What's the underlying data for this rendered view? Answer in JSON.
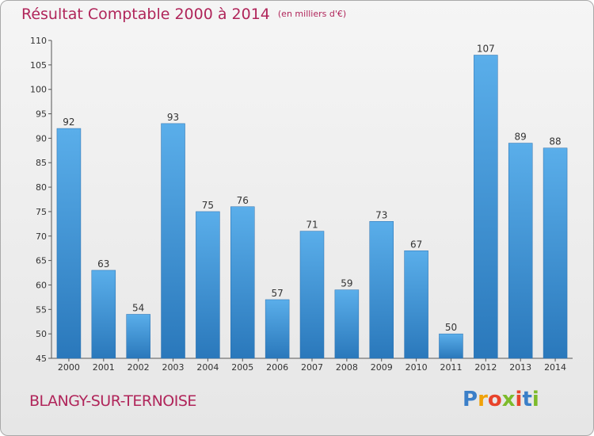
{
  "chart_data": {
    "type": "bar",
    "title": "Résultat Comptable 2000 à 2014",
    "subtitle": "(en milliers d'€)",
    "categories": [
      "2000",
      "2001",
      "2002",
      "2003",
      "2004",
      "2005",
      "2006",
      "2007",
      "2008",
      "2009",
      "2010",
      "2011",
      "2012",
      "2013",
      "2014"
    ],
    "values": [
      92,
      63,
      54,
      93,
      75,
      76,
      57,
      71,
      59,
      73,
      67,
      50,
      107,
      89,
      88
    ],
    "ylim": [
      45,
      110
    ],
    "yticks": [
      45,
      50,
      55,
      60,
      65,
      70,
      75,
      80,
      85,
      90,
      95,
      100,
      105,
      110
    ],
    "grid": false,
    "bar_color": "#3a8fd6",
    "bar_label_position": "above"
  },
  "footer": {
    "commune": "BLANGY-SUR-TERNOISE"
  },
  "logo": {
    "letters": [
      "P",
      "r",
      "o",
      "x",
      "i",
      "t",
      "i"
    ],
    "colors": [
      "#3b7fc8",
      "#f0a20a",
      "#e8432b",
      "#7dbb2b",
      "#e8432b",
      "#3b7fc8",
      "#7dbb2b"
    ]
  },
  "colors": {
    "title": "#b0255a",
    "axis": "#333333",
    "frame_border": "#a9a9a9"
  }
}
